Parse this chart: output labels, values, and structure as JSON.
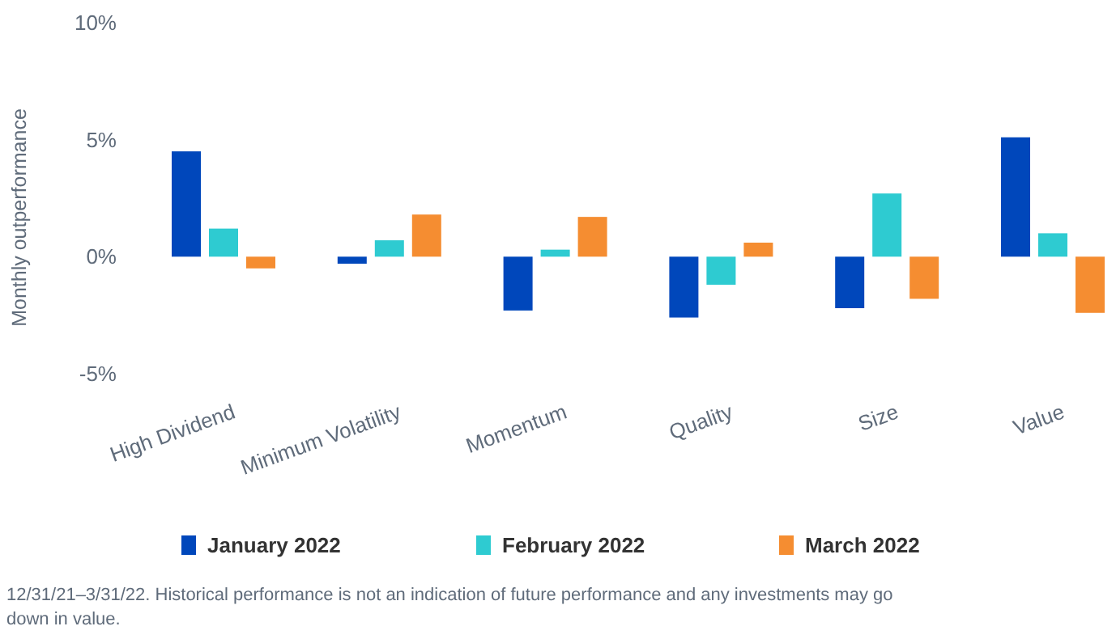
{
  "chart_data": {
    "type": "bar",
    "ylabel": "Monthly outperformance",
    "categories": [
      "High Dividend",
      "Minimum Volatility",
      "Momentum",
      "Quality",
      "Size",
      "Value"
    ],
    "series": [
      {
        "name": "January 2022",
        "color": "#0047bb",
        "values": [
          4.5,
          -0.3,
          -2.3,
          -2.6,
          -2.2,
          5.1
        ]
      },
      {
        "name": "February 2022",
        "color": "#2ecbd1",
        "values": [
          1.2,
          0.7,
          0.3,
          -1.2,
          2.7,
          1.0
        ]
      },
      {
        "name": "March 2022",
        "color": "#f58d31",
        "values": [
          -0.5,
          1.8,
          1.7,
          0.6,
          -1.8,
          -2.4
        ]
      }
    ],
    "ylim": [
      -5,
      10
    ],
    "yticks": [
      {
        "value": -5,
        "label": "-5%"
      },
      {
        "value": 0,
        "label": "0%"
      },
      {
        "value": 5,
        "label": "5%"
      },
      {
        "value": 10,
        "label": "10%"
      }
    ],
    "grid": false,
    "legend": "bottom",
    "annotations": [
      "12/31/21–3/31/22. Historical performance is not an indication of future performance and any investments may go down in value."
    ]
  }
}
